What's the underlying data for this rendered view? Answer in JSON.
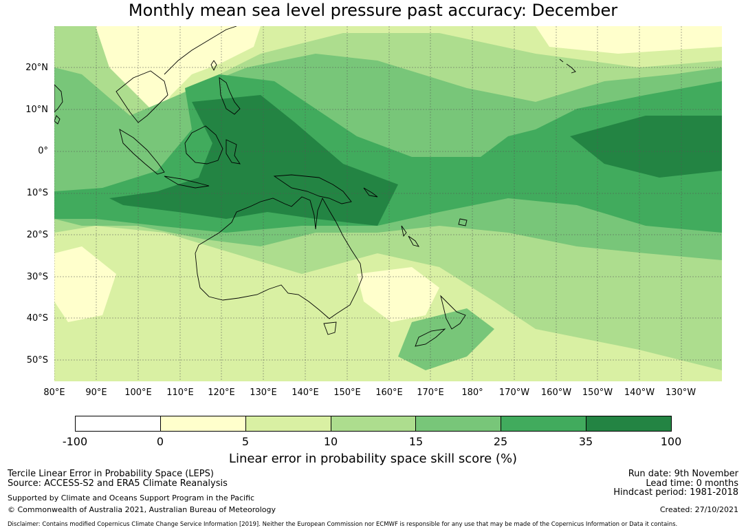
{
  "title": "Monthly mean sea level pressure past accuracy: December",
  "lat_labels": [
    "20°N",
    "10°N",
    "0°",
    "10°S",
    "20°S",
    "30°S",
    "40°S",
    "50°S"
  ],
  "lon_labels": [
    "80°E",
    "90°E",
    "100°E",
    "110°E",
    "120°E",
    "130°E",
    "140°E",
    "150°E",
    "160°E",
    "170°E",
    "180°",
    "170°W",
    "160°W",
    "150°W",
    "140°W",
    "130°W"
  ],
  "colorbar": {
    "ticks": [
      "-100",
      "0",
      "5",
      "10",
      "15",
      "25",
      "35",
      "100"
    ],
    "colors": [
      "#ffffff",
      "#ffffcc",
      "#d9f0a3",
      "#addd8e",
      "#78c679",
      "#41ab5d",
      "#238443"
    ],
    "label": "Linear error in probability space skill score (%)"
  },
  "footer": {
    "left_line1": "Tercile Linear Error in Probability Space (LEPS)",
    "left_line2": "Source: ACCESS-S2 and ERA5 Climate Reanalysis",
    "support": "Supported by Climate and Oceans Support Program in the Pacific",
    "copyright": "© Commonwealth of Australia 2021, Australian Bureau of Meteorology",
    "run_date": "Run date: 9th November",
    "lead_time": "Lead time: 0 months",
    "hindcast": "Hindcast period: 1981-2018",
    "created": "Created: 27/10/2021",
    "disclaimer": "Disclaimer: Contains modified Copernicus Climate Change Service Information [2019]. Neither the European Commission nor ECMWF is responsible for any use that may be made of the Copernicus Information or Data it contains."
  }
}
